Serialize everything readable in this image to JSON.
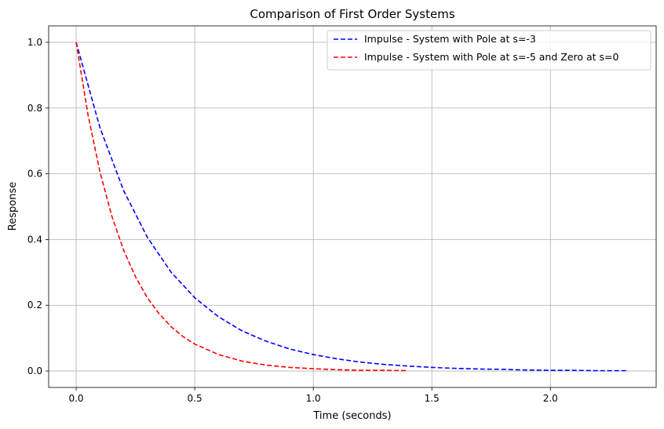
{
  "chart_data": {
    "type": "line",
    "title": "Comparison of First Order Systems",
    "xlabel": "Time (seconds)",
    "ylabel": "Response",
    "xlim": [
      -0.116,
      2.446
    ],
    "ylim": [
      -0.05,
      1.05
    ],
    "x_ticks": [
      0.0,
      0.5,
      1.0,
      1.5,
      2.0
    ],
    "x_tick_labels": [
      "0.0",
      "0.5",
      "1.0",
      "1.5",
      "2.0"
    ],
    "y_ticks": [
      0.0,
      0.2,
      0.4,
      0.6,
      0.8,
      1.0
    ],
    "y_tick_labels": [
      "0.0",
      "0.2",
      "0.4",
      "0.6",
      "0.8",
      "1.0"
    ],
    "grid": true,
    "legend_position": "top-right",
    "series": [
      {
        "name": "Impulse - System with Pole at s=-3",
        "color": "#0000ff",
        "style": "dashed",
        "x": [
          0.0,
          0.1,
          0.2,
          0.3,
          0.4,
          0.5,
          0.6,
          0.7,
          0.8,
          0.9,
          1.0,
          1.1,
          1.2,
          1.3,
          1.4,
          1.5,
          1.6,
          1.7,
          1.8,
          1.9,
          2.0,
          2.1,
          2.2,
          2.33
        ],
        "y": [
          1.0,
          0.741,
          0.549,
          0.407,
          0.301,
          0.223,
          0.165,
          0.122,
          0.091,
          0.067,
          0.05,
          0.037,
          0.027,
          0.02,
          0.015,
          0.011,
          0.008,
          0.006,
          0.005,
          0.003,
          0.002,
          0.002,
          0.001,
          0.001
        ]
      },
      {
        "name": "Impulse - System with Pole at s=-5 and Zero at s=0",
        "color": "#ff0000",
        "style": "dashed",
        "x": [
          0.0,
          0.05,
          0.1,
          0.15,
          0.2,
          0.25,
          0.3,
          0.35,
          0.4,
          0.45,
          0.5,
          0.6,
          0.7,
          0.8,
          0.9,
          1.0,
          1.1,
          1.2,
          1.3,
          1.4
        ],
        "y": [
          1.0,
          0.779,
          0.607,
          0.472,
          0.368,
          0.287,
          0.223,
          0.174,
          0.135,
          0.105,
          0.082,
          0.05,
          0.03,
          0.018,
          0.011,
          0.007,
          0.004,
          0.002,
          0.002,
          0.001
        ]
      }
    ]
  }
}
